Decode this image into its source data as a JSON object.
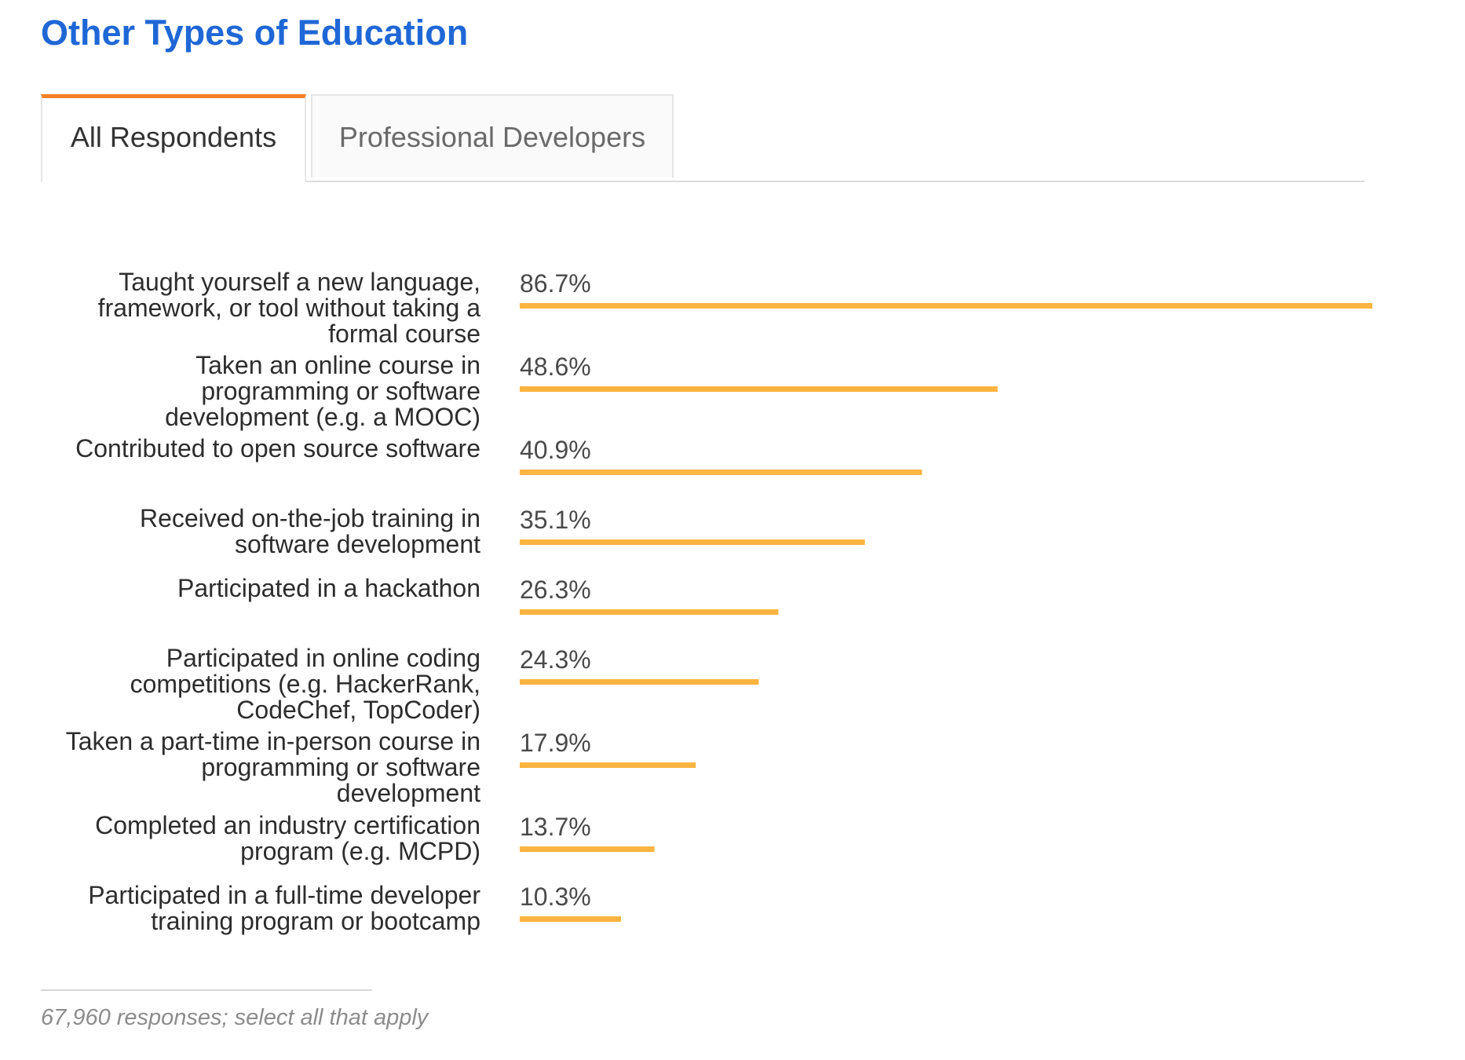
{
  "header": {
    "title": "Other Types of Education"
  },
  "tabs": [
    {
      "label": "All Respondents",
      "active": true
    },
    {
      "label": "Professional Developers",
      "active": false
    }
  ],
  "colors": {
    "title": "#1f67d6",
    "active_tab_accent": "#f48024",
    "bar": "#fbb440"
  },
  "chart_data": {
    "type": "bar",
    "orientation": "horizontal",
    "title": "",
    "xlabel": "",
    "ylabel": "",
    "xlim": [
      0,
      86.7
    ],
    "grid": false,
    "legend": "none",
    "categories": [
      [
        "Taught yourself a new language,",
        "framework, or tool without taking a",
        "formal course"
      ],
      [
        "Taken an online course in",
        "programming or software",
        "development (e.g. a MOOC)"
      ],
      [
        "Contributed to open source software"
      ],
      [
        "Received on-the-job training in",
        "software development"
      ],
      [
        "Participated in a hackathon"
      ],
      [
        "Participated in online coding",
        "competitions (e.g. HackerRank,",
        "CodeChef, TopCoder)"
      ],
      [
        "Taken a part-time in-person course in",
        "programming or software",
        "development"
      ],
      [
        "Completed an industry certification",
        "program (e.g. MCPD)"
      ],
      [
        "Participated in a full-time developer",
        "training program or bootcamp"
      ]
    ],
    "values": [
      86.7,
      48.6,
      40.9,
      35.1,
      26.3,
      24.3,
      17.9,
      13.7,
      10.3
    ],
    "value_labels": [
      "86.7%",
      "48.6%",
      "40.9%",
      "35.1%",
      "26.3%",
      "24.3%",
      "17.9%",
      "13.7%",
      "10.3%"
    ]
  },
  "footer": {
    "note": "67,960 responses; select all that apply"
  }
}
